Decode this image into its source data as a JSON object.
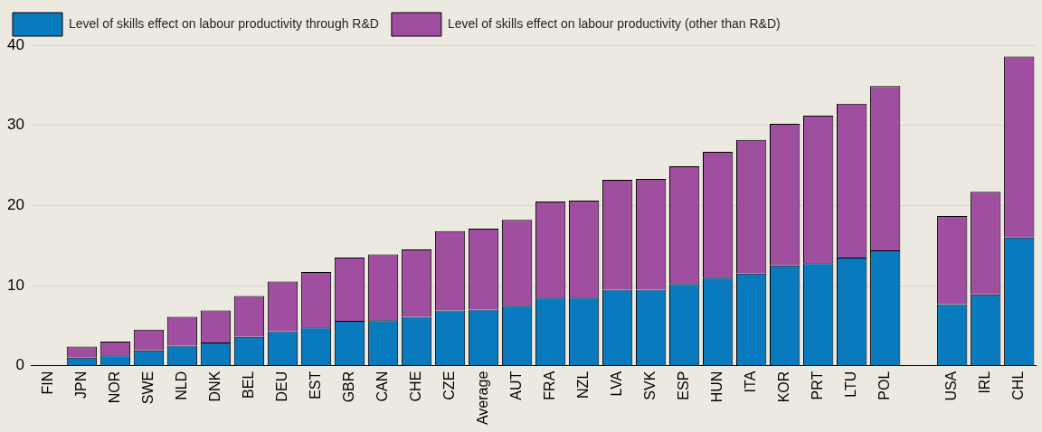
{
  "chart_data": {
    "type": "bar",
    "stacked": true,
    "legend": "top left",
    "grid": "y",
    "categories": [
      "FIN",
      "JPN",
      "NOR",
      "SWE",
      "NLD",
      "DNK",
      "BEL",
      "DEU",
      "EST",
      "GBR",
      "CAN",
      "CHE",
      "CZE",
      "Average",
      "AUT",
      "FRA",
      "NZL",
      "LVA",
      "SVK",
      "ESP",
      "HUN",
      "ITA",
      "KOR",
      "PRT",
      "LTU",
      "POL",
      null,
      "USA",
      "IRL",
      "CHL"
    ],
    "ylim": [
      0,
      40
    ],
    "yticks": [
      0,
      10,
      20,
      30,
      40
    ],
    "series": [
      {
        "name": "Level of skills effect on labour productivity through R&D",
        "color": "#0a7abf",
        "values": [
          0,
          1.0,
          1.3,
          1.9,
          2.5,
          2.9,
          3.6,
          4.3,
          4.8,
          5.6,
          5.7,
          6.1,
          6.9,
          7.0,
          7.5,
          8.5,
          8.5,
          9.5,
          9.5,
          10.2,
          11.0,
          11.5,
          12.5,
          12.8,
          13.5,
          14.4,
          null,
          7.7,
          8.9,
          16.0
        ]
      },
      {
        "name": "Level of skills effect on labour productivity (other than R&D)",
        "color": "#a04fa0",
        "values": [
          0,
          1.4,
          1.7,
          2.6,
          3.6,
          4.0,
          5.1,
          6.2,
          6.9,
          7.9,
          8.2,
          8.4,
          9.9,
          10.1,
          10.7,
          12.0,
          12.1,
          13.7,
          13.8,
          14.7,
          15.7,
          16.7,
          17.7,
          18.4,
          19.2,
          20.5,
          null,
          11.0,
          12.8,
          22.6
        ]
      }
    ]
  }
}
